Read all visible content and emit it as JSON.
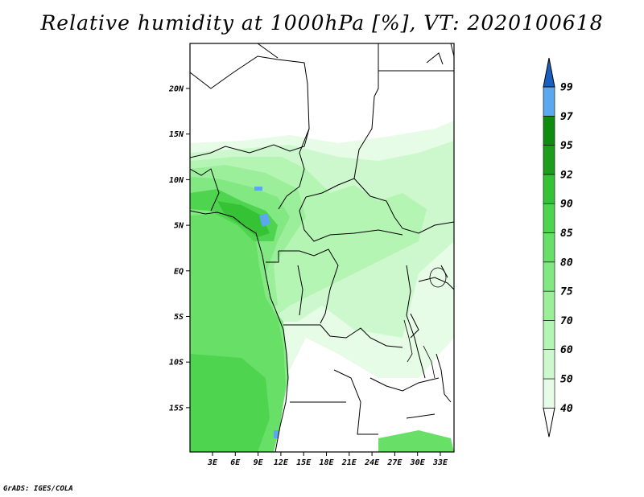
{
  "title": "Relative humidity at 1000hPa [%], VT: 2020100618",
  "credit": "GrADS: IGES/COLA",
  "map": {
    "lat_labels": [
      "20N",
      "15N",
      "10N",
      "5N",
      "EQ",
      "5S",
      "10S",
      "15S"
    ],
    "lon_labels": [
      "3E",
      "6E",
      "9E",
      "12E",
      "15E",
      "18E",
      "21E",
      "24E",
      "27E",
      "30E",
      "33E"
    ],
    "lon_range": [
      0,
      35
    ],
    "lat_range": [
      -20,
      24.5
    ]
  },
  "colorbar": {
    "levels": [
      "40",
      "50",
      "60",
      "70",
      "75",
      "80",
      "85",
      "90",
      "92",
      "95",
      "97",
      "99"
    ],
    "colors": [
      "#ffffff",
      "#e6fce6",
      "#cdf8cd",
      "#b4f5b4",
      "#9bef9b",
      "#82e882",
      "#68e068",
      "#4fd44f",
      "#35c335",
      "#1c9e1c",
      "#0e8c0e",
      "#5aa8f0",
      "#1f6fd8",
      "#1a5fc0"
    ]
  }
}
